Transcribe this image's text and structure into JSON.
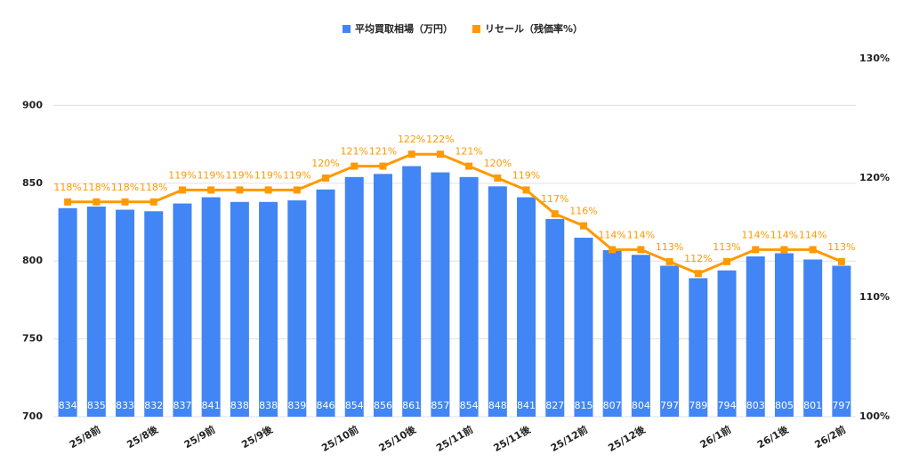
{
  "chart_data": {
    "type": "bar-line",
    "categories": [
      null,
      "25/8前",
      null,
      "25/8後",
      null,
      "25/9前",
      null,
      "25/9後",
      null,
      null,
      "25/10前",
      null,
      "25/10後",
      null,
      "25/11前",
      null,
      "25/11後",
      null,
      "25/12前",
      null,
      "25/12後",
      null,
      null,
      "26/1前",
      null,
      "26/1後",
      null,
      "26/2前"
    ],
    "series": [
      {
        "name": "平均買取相場（万円）",
        "color": "#4285f4",
        "type": "bar",
        "values": [
          834,
          835,
          833,
          832,
          837,
          841,
          838,
          838,
          839,
          846,
          854,
          856,
          861,
          857,
          854,
          848,
          841,
          827,
          815,
          807,
          804,
          797,
          789,
          794,
          803,
          805,
          801,
          797
        ]
      },
      {
        "name": "リセール（残価率%）",
        "color": "#ff9900",
        "type": "line",
        "axis": "y2",
        "values": [
          118,
          118,
          118,
          118,
          119,
          119,
          119,
          119,
          119,
          120,
          121,
          121,
          122,
          122,
          121,
          120,
          119,
          117,
          116,
          114,
          114,
          113,
          112,
          113,
          114,
          114,
          114,
          113
        ],
        "value_labels": [
          "118%",
          "118%",
          "118%",
          "118%",
          "119%",
          "119%",
          "119%",
          "119%",
          "119%",
          "120%",
          "121%",
          "121%",
          "122%",
          "122%",
          "121%",
          "120%",
          "119%",
          "117%",
          "116%",
          "114%",
          "114%",
          "113%",
          "112%",
          "113%",
          "114%",
          "114%",
          "114%",
          "113%"
        ]
      }
    ],
    "ylim": [
      700,
      930
    ],
    "yticks": [
      700,
      750,
      800,
      850,
      900
    ],
    "y2lim": [
      100,
      130
    ],
    "y2ticks": [
      {
        "value": 100,
        "label": "100%"
      },
      {
        "value": 110,
        "label": "110%"
      },
      {
        "value": 120,
        "label": "120%"
      },
      {
        "value": 130,
        "label": "130%"
      }
    ],
    "grid": true,
    "legend": "top"
  }
}
